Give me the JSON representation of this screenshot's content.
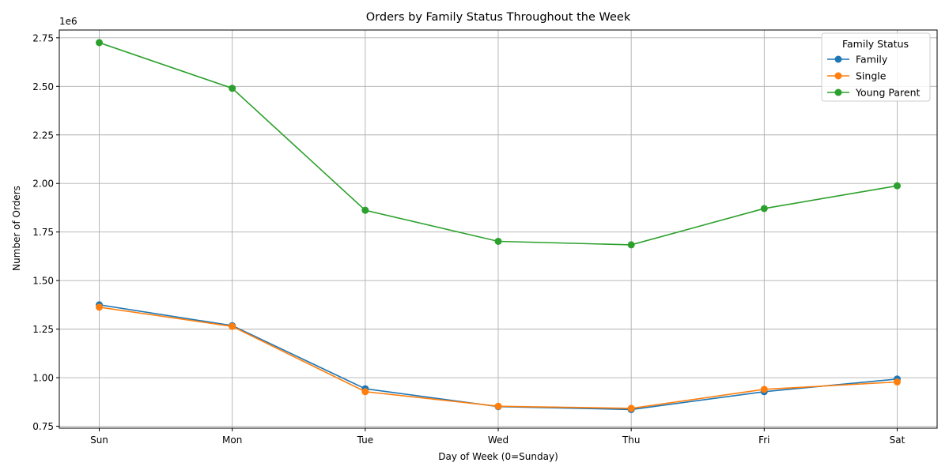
{
  "chart_data": {
    "type": "line",
    "title": "Orders by Family Status Throughout the Week",
    "xlabel": "Day of Week (0=Sunday)",
    "ylabel": "Number of Orders",
    "y_offset_label": "1e6",
    "categories": [
      "Sun",
      "Mon",
      "Tue",
      "Wed",
      "Thu",
      "Fri",
      "Sat"
    ],
    "ylim": [
      740000,
      2790000
    ],
    "yticks": [
      750000,
      1000000,
      1250000,
      1500000,
      1750000,
      2000000,
      2250000,
      2500000,
      2750000
    ],
    "ytick_labels": [
      "0.75",
      "1.00",
      "1.25",
      "1.50",
      "1.75",
      "2.00",
      "2.25",
      "2.50",
      "2.75"
    ],
    "grid": true,
    "legend": {
      "title": "Family Status",
      "placement": "top-right"
    },
    "series": [
      {
        "name": "Family",
        "color": "#1f77b4",
        "marker": "circle",
        "values": [
          1375000,
          1268000,
          943000,
          851000,
          836000,
          928000,
          993000
        ]
      },
      {
        "name": "Single",
        "color": "#ff7f0e",
        "marker": "circle",
        "values": [
          1363000,
          1264000,
          928000,
          853000,
          842000,
          940000,
          978000
        ]
      },
      {
        "name": "Young Parent",
        "color": "#2ca02c",
        "marker": "circle",
        "values": [
          2725000,
          2490000,
          1862000,
          1702000,
          1684000,
          1871000,
          1988000
        ]
      }
    ]
  }
}
